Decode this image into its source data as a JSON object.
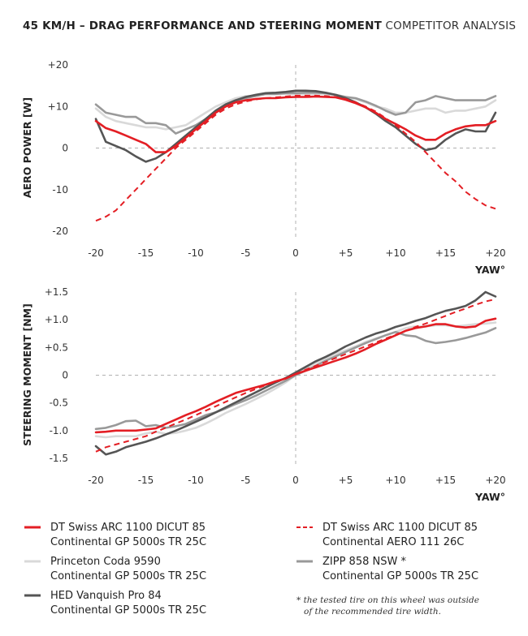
{
  "header": {
    "title_bold": "45 KM/H – DRAG PERFORMANCE AND STEERING MOMENT",
    "title_light": "COMPETITOR ANALYSIS"
  },
  "colors": {
    "dt_swiss_gp": "#e31e24",
    "dt_swiss_aero": "#e31e24",
    "princeton": "#d9d9d9",
    "zipp": "#999999",
    "hed": "#555555"
  },
  "legend": [
    {
      "key": "dt_swiss_gp",
      "line1": "DT Swiss ARC 1100 DICUT 85",
      "line2": "Continental GP 5000s TR 25C"
    },
    {
      "key": "dt_swiss_aero",
      "line1": "DT Swiss ARC 1100 DICUT 85",
      "line2": "Continental AERO 111 26C"
    },
    {
      "key": "princeton",
      "line1": "Princeton Coda 9590",
      "line2": "Continental GP 5000s TR 25C"
    },
    {
      "key": "zipp",
      "line1": "ZIPP 858 NSW *",
      "line2": "Continental GP 5000s TR 25C"
    },
    {
      "key": "hed",
      "line1": "HED Vanquish Pro 84",
      "line2": "Continental GP 5000s TR 25C"
    }
  ],
  "footnote": {
    "line1": "* the tested tire on this wheel was outside",
    "line2": "of the recommended tire width."
  },
  "chart_data": [
    {
      "type": "line",
      "title": "45 KM/H – DRAG PERFORMANCE AND STEERING MOMENT COMPETITOR ANALYSIS",
      "ylabel": "AERO POWER [W]",
      "xlabel": "YAW°",
      "xlim": [
        -20,
        20
      ],
      "ylim": [
        -20,
        20
      ],
      "xticks": [
        -20,
        -15,
        -10,
        -5,
        0,
        5,
        10,
        15,
        20
      ],
      "xtick_labels": [
        "-20",
        "-15",
        "-10",
        "-5",
        "0",
        "+5",
        "+10",
        "+15",
        "+20"
      ],
      "yticks": [
        20,
        10,
        0,
        -10,
        -20
      ],
      "ytick_labels": [
        "+20",
        "+10",
        "0",
        "-10",
        "-20"
      ],
      "series": [
        {
          "name": "Princeton Coda 9590 / Continental GP 5000s TR 25C",
          "key": "princeton",
          "dash": false,
          "x": [
            -20,
            -19,
            -18,
            -17,
            -16,
            -15,
            -14,
            -13,
            -12,
            -11,
            -10,
            -9,
            -8,
            -7,
            -6,
            -5,
            -4,
            -3,
            -2,
            -1,
            0,
            1,
            2,
            3,
            4,
            5,
            6,
            7,
            8,
            9,
            10,
            11,
            12,
            13,
            14,
            15,
            16,
            17,
            18,
            19,
            20
          ],
          "y": [
            9.5,
            7.5,
            6.5,
            6,
            5.5,
            5,
            5,
            4.5,
            5,
            5.5,
            7,
            8.5,
            10,
            11,
            12,
            12.5,
            12.5,
            13,
            13,
            13,
            13,
            13,
            13,
            13,
            12.8,
            12.3,
            11.8,
            11,
            10,
            9.5,
            8.5,
            8.5,
            9,
            9.5,
            9.5,
            8.5,
            9,
            9,
            9.5,
            10,
            11.5
          ]
        },
        {
          "name": "ZIPP 858 NSW * / Continental GP 5000s TR 25C",
          "key": "zipp",
          "dash": false,
          "x": [
            -20,
            -19,
            -18,
            -17,
            -16,
            -15,
            -14,
            -13,
            -12,
            -11,
            -10,
            -9,
            -8,
            -7,
            -6,
            -5,
            -4,
            -3,
            -2,
            -1,
            0,
            1,
            2,
            3,
            4,
            5,
            6,
            7,
            8,
            9,
            10,
            11,
            12,
            13,
            14,
            15,
            16,
            17,
            18,
            19,
            20
          ],
          "y": [
            10.5,
            8.5,
            8,
            7.5,
            7.5,
            6,
            6,
            5.5,
            3.5,
            4.5,
            5.5,
            7,
            9,
            10.5,
            11.5,
            12,
            12.5,
            13,
            13,
            13.2,
            13.2,
            13.3,
            13.3,
            13.2,
            12.8,
            12.3,
            12,
            11.2,
            10.2,
            9,
            8,
            8.5,
            11,
            11.5,
            12.5,
            12,
            11.5,
            11.5,
            11.5,
            11.5,
            12.5
          ]
        },
        {
          "name": "HED Vanquish Pro 84 / Continental GP 5000s TR 25C",
          "key": "hed",
          "dash": false,
          "x": [
            -20,
            -19,
            -18,
            -17,
            -16,
            -15,
            -14,
            -13,
            -12,
            -11,
            -10,
            -9,
            -8,
            -7,
            -6,
            -5,
            -4,
            -3,
            -2,
            -1,
            0,
            1,
            2,
            3,
            4,
            5,
            6,
            7,
            8,
            9,
            10,
            11,
            12,
            13,
            14,
            15,
            16,
            17,
            18,
            19,
            20
          ],
          "y": [
            7,
            1.5,
            0.5,
            -0.5,
            -2,
            -3.3,
            -2.5,
            -1,
            1,
            3,
            5,
            7,
            9,
            10.5,
            11.5,
            12.3,
            12.8,
            13.2,
            13.3,
            13.5,
            13.8,
            13.8,
            13.7,
            13.3,
            12.8,
            12,
            11,
            9.8,
            8.3,
            6.5,
            5,
            3,
            1,
            -0.5,
            0,
            2,
            3.5,
            4.5,
            4,
            4,
            8.5
          ]
        },
        {
          "name": "DT Swiss ARC 1100 DICUT 85 / Continental GP 5000s TR 25C",
          "key": "dt_swiss_gp",
          "dash": false,
          "x": [
            -20,
            -19,
            -18,
            -17,
            -16,
            -15,
            -14,
            -13,
            -12,
            -11,
            -10,
            -9,
            -8,
            -7,
            -6,
            -5,
            -4,
            -3,
            -2,
            -1,
            0,
            1,
            2,
            3,
            4,
            5,
            6,
            7,
            8,
            9,
            10,
            11,
            12,
            13,
            14,
            15,
            16,
            17,
            18,
            19,
            20
          ],
          "y": [
            6.5,
            4.8,
            4,
            3,
            2,
            1,
            -1,
            -1,
            0.5,
            2.5,
            4.5,
            6.5,
            8.5,
            10,
            11,
            11.5,
            11.8,
            12,
            12,
            12.2,
            12.3,
            12.3,
            12.4,
            12.3,
            12.2,
            11.6,
            10.8,
            9.8,
            8.5,
            7,
            5.8,
            4.5,
            3,
            2,
            2,
            3.5,
            4.5,
            5.2,
            5.5,
            5.5,
            6.5
          ]
        },
        {
          "name": "DT Swiss ARC 1100 DICUT 85 / Continental AERO 111 26C",
          "key": "dt_swiss_aero",
          "dash": true,
          "x": [
            -20,
            -19,
            -18,
            -17,
            -16,
            -15,
            -14,
            -13,
            -12,
            -11,
            -10,
            -9,
            -8,
            -7,
            -6,
            -5,
            -4,
            -3,
            -2,
            -1,
            0,
            1,
            2,
            3,
            4,
            5,
            6,
            7,
            8,
            9,
            10,
            11,
            12,
            13,
            14,
            15,
            16,
            17,
            18,
            19,
            20
          ],
          "y": [
            -17.5,
            -16.5,
            -15,
            -12.5,
            -10,
            -7.5,
            -5,
            -2.5,
            0,
            2,
            4,
            6,
            8,
            9.5,
            10.5,
            11.2,
            11.7,
            12,
            12.2,
            12.4,
            12.6,
            12.6,
            12.6,
            12.5,
            12.3,
            11.8,
            11,
            10,
            8.8,
            7.2,
            5.5,
            3.5,
            1.5,
            -1,
            -3.5,
            -6,
            -8,
            -10.5,
            -12.3,
            -13.8,
            -14.6
          ]
        }
      ]
    },
    {
      "type": "line",
      "ylabel": "STEERING MOMENT [NM]",
      "xlabel": "YAW°",
      "xlim": [
        -20,
        20
      ],
      "ylim": [
        -1.5,
        1.5
      ],
      "xticks": [
        -20,
        -15,
        -10,
        -5,
        0,
        5,
        10,
        15,
        20
      ],
      "xtick_labels": [
        "-20",
        "-15",
        "-10",
        "-5",
        "0",
        "+5",
        "+10",
        "+15",
        "+20"
      ],
      "yticks": [
        1.5,
        1.0,
        0.5,
        0,
        -0.5,
        -1.0,
        -1.5
      ],
      "ytick_labels": [
        "+1.5",
        "+1.0",
        "+0.5",
        "0",
        "-0.5",
        "-1.0",
        "-1.5"
      ],
      "series": [
        {
          "name": "Princeton Coda 9590 / Continental GP 5000s TR 25C",
          "key": "princeton",
          "dash": false,
          "x": [
            -20,
            -19,
            -18,
            -17,
            -16,
            -15,
            -14,
            -13,
            -12,
            -11,
            -10,
            -9,
            -8,
            -7,
            -6,
            -5,
            -4,
            -3,
            -2,
            -1,
            0,
            1,
            2,
            3,
            4,
            5,
            6,
            7,
            8,
            9,
            10,
            11,
            12,
            13,
            14,
            15,
            16,
            17,
            18,
            19,
            20
          ],
          "y": [
            -1.1,
            -1.12,
            -1.1,
            -1.1,
            -1.1,
            -1.05,
            -1.02,
            -1.06,
            -1.04,
            -1,
            -0.95,
            -0.87,
            -0.78,
            -0.68,
            -0.6,
            -0.52,
            -0.43,
            -0.34,
            -0.24,
            -0.13,
            0,
            0.12,
            0.22,
            0.3,
            0.38,
            0.45,
            0.52,
            0.6,
            0.66,
            0.72,
            0.78,
            0.85,
            0.88,
            0.88,
            0.9,
            0.9,
            0.88,
            0.9,
            0.92,
            0.93,
            0.95
          ]
        },
        {
          "name": "ZIPP 858 NSW * / Continental GP 5000s TR 25C",
          "key": "zipp",
          "dash": false,
          "x": [
            -20,
            -19,
            -18,
            -17,
            -16,
            -15,
            -14,
            -13,
            -12,
            -11,
            -10,
            -9,
            -8,
            -7,
            -6,
            -5,
            -4,
            -3,
            -2,
            -1,
            0,
            1,
            2,
            3,
            4,
            5,
            6,
            7,
            8,
            9,
            10,
            11,
            12,
            13,
            14,
            15,
            16,
            17,
            18,
            19,
            20
          ],
          "y": [
            -0.97,
            -0.95,
            -0.9,
            -0.83,
            -0.82,
            -0.92,
            -0.9,
            -0.95,
            -0.92,
            -0.88,
            -0.8,
            -0.72,
            -0.67,
            -0.6,
            -0.52,
            -0.45,
            -0.37,
            -0.28,
            -0.19,
            -0.1,
            0,
            0.08,
            0.17,
            0.26,
            0.34,
            0.42,
            0.5,
            0.58,
            0.65,
            0.72,
            0.78,
            0.72,
            0.7,
            0.62,
            0.58,
            0.6,
            0.63,
            0.67,
            0.72,
            0.77,
            0.85
          ]
        },
        {
          "name": "HED Vanquish Pro 84 / Continental GP 5000s TR 25C",
          "key": "hed",
          "dash": false,
          "x": [
            -20,
            -19,
            -18,
            -17,
            -16,
            -15,
            -14,
            -13,
            -12,
            -11,
            -10,
            -9,
            -8,
            -7,
            -6,
            -5,
            -4,
            -3,
            -2,
            -1,
            0,
            1,
            2,
            3,
            4,
            5,
            6,
            7,
            8,
            9,
            10,
            11,
            12,
            13,
            14,
            15,
            16,
            17,
            18,
            19,
            20
          ],
          "y": [
            -1.28,
            -1.43,
            -1.38,
            -1.3,
            -1.25,
            -1.2,
            -1.14,
            -1.07,
            -1.0,
            -0.92,
            -0.84,
            -0.76,
            -0.67,
            -0.58,
            -0.49,
            -0.4,
            -0.31,
            -0.22,
            -0.13,
            -0.05,
            0.05,
            0.15,
            0.25,
            0.33,
            0.42,
            0.52,
            0.6,
            0.68,
            0.75,
            0.8,
            0.87,
            0.92,
            0.98,
            1.03,
            1.1,
            1.16,
            1.2,
            1.25,
            1.35,
            1.5,
            1.42
          ]
        },
        {
          "name": "DT Swiss ARC 1100 DICUT 85 / Continental GP 5000s TR 25C",
          "key": "dt_swiss_gp",
          "dash": false,
          "x": [
            -20,
            -19,
            -18,
            -17,
            -16,
            -15,
            -14,
            -13,
            -12,
            -11,
            -10,
            -9,
            -8,
            -7,
            -6,
            -5,
            -4,
            -3,
            -2,
            -1,
            0,
            1,
            2,
            3,
            4,
            5,
            6,
            7,
            8,
            9,
            10,
            11,
            12,
            13,
            14,
            15,
            16,
            17,
            18,
            19,
            20
          ],
          "y": [
            -1.03,
            -1.02,
            -1.0,
            -1.0,
            -1.0,
            -0.98,
            -0.96,
            -0.88,
            -0.8,
            -0.72,
            -0.65,
            -0.57,
            -0.48,
            -0.4,
            -0.32,
            -0.27,
            -0.22,
            -0.17,
            -0.11,
            -0.06,
            0.02,
            0.08,
            0.14,
            0.2,
            0.26,
            0.32,
            0.39,
            0.47,
            0.56,
            0.64,
            0.72,
            0.8,
            0.85,
            0.88,
            0.92,
            0.92,
            0.88,
            0.86,
            0.88,
            0.98,
            1.02
          ]
        },
        {
          "name": "DT Swiss ARC 1100 DICUT 85 / Continental AERO 111 26C",
          "key": "dt_swiss_aero",
          "dash": true,
          "x": [
            -20,
            -19,
            -18,
            -17,
            -16,
            -15,
            -14,
            -13,
            -12,
            -11,
            -10,
            -9,
            -8,
            -7,
            -6,
            -5,
            -4,
            -3,
            -2,
            -1,
            0,
            1,
            2,
            3,
            4,
            5,
            6,
            7,
            8,
            9,
            10,
            11,
            12,
            13,
            14,
            15,
            16,
            17,
            18,
            19,
            20
          ],
          "y": [
            -1.38,
            -1.3,
            -1.25,
            -1.2,
            -1.15,
            -1.1,
            -1.02,
            -0.95,
            -0.87,
            -0.8,
            -0.72,
            -0.64,
            -0.56,
            -0.48,
            -0.4,
            -0.32,
            -0.25,
            -0.18,
            -0.12,
            -0.06,
            0.02,
            0.1,
            0.17,
            0.24,
            0.31,
            0.38,
            0.45,
            0.52,
            0.59,
            0.66,
            0.73,
            0.8,
            0.87,
            0.93,
            1.0,
            1.07,
            1.14,
            1.2,
            1.27,
            1.33,
            1.37
          ]
        }
      ]
    }
  ]
}
